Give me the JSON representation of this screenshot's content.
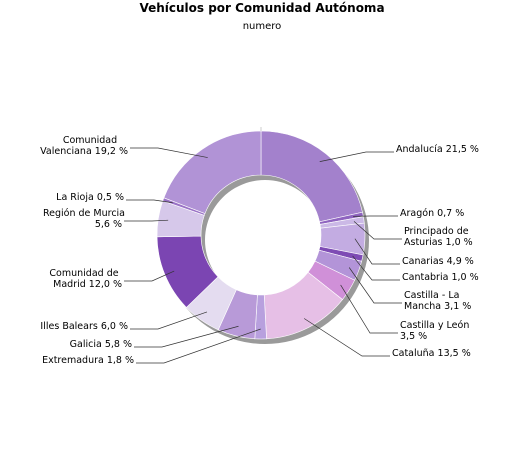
{
  "chart_data": {
    "type": "pie",
    "title": "Vehículos por Comunidad Autónoma",
    "subtitle": "numero",
    "slices": [
      {
        "name": "Andalucía",
        "value": 21.5,
        "label": [
          "Andalucía 21,5 %"
        ],
        "color": "#a381cc",
        "side": "right"
      },
      {
        "name": "Aragón",
        "value": 0.7,
        "label": [
          "Aragón 0,7 %"
        ],
        "color": "#8f64c0",
        "side": "right"
      },
      {
        "name": "Principado de Asturias",
        "value": 1.0,
        "label": [
          "Principado de",
          "Asturias 1,0 %"
        ],
        "color": "#cbb9e6",
        "side": "right"
      },
      {
        "name": "Canarias",
        "value": 4.9,
        "label": [
          "Canarias 4,9 %"
        ],
        "color": "#c3ace2",
        "side": "right"
      },
      {
        "name": "Cantabria",
        "value": 1.0,
        "label": [
          "Cantabria 1,0 %"
        ],
        "color": "#7e4bb4",
        "side": "right"
      },
      {
        "name": "Castilla - La Mancha",
        "value": 3.1,
        "label": [
          "Castilla - La",
          "Mancha 3,1 %"
        ],
        "color": "#b394d8",
        "side": "right"
      },
      {
        "name": "Castilla y León",
        "value": 3.5,
        "label": [
          "Castilla y León",
          "3,5 %"
        ],
        "color": "#d090d8",
        "side": "right"
      },
      {
        "name": "Cataluña",
        "value": 13.5,
        "label": [
          "Cataluña 13,5 %"
        ],
        "color": "#e6bfe6",
        "side": "right"
      },
      {
        "name": "Extremadura",
        "value": 1.8,
        "label": [
          "Extremadura 1,8 %"
        ],
        "color": "#b8a0de",
        "side": "left"
      },
      {
        "name": "Galicia",
        "value": 5.8,
        "label": [
          "Galicia 5,8 %"
        ],
        "color": "#b89ad8",
        "side": "left"
      },
      {
        "name": "Illes Balears",
        "value": 6.0,
        "label": [
          "Illes Balears 6,0 %"
        ],
        "color": "#e4dcf0",
        "side": "left"
      },
      {
        "name": "Comunidad de Madrid",
        "value": 12.0,
        "label": [
          "Comunidad de",
          "Madrid 12,0 %"
        ],
        "color": "#7b45b2",
        "side": "left"
      },
      {
        "name": "Región de Murcia",
        "value": 5.6,
        "label": [
          "Región de Murcia",
          "5,6 %"
        ],
        "color": "#d6c8ea",
        "side": "left"
      },
      {
        "name": "La Rioja",
        "value": 0.5,
        "label": [
          "La Rioja 0,5 %"
        ],
        "color": "#9a72c6",
        "side": "left"
      },
      {
        "name": "Comunidad Valenciana",
        "value": 19.2,
        "label": [
          "Comunidad",
          "Valenciana 19,2 %"
        ],
        "color": "#b193d6",
        "side": "left"
      }
    ]
  }
}
